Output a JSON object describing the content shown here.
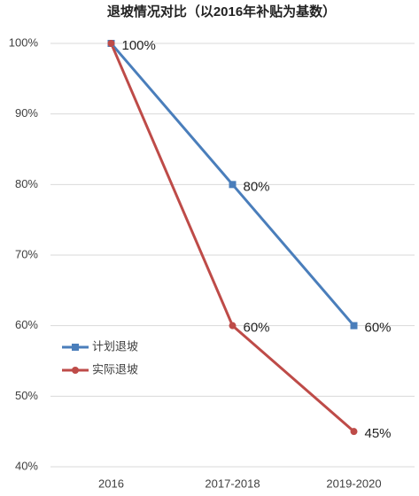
{
  "chart_data": {
    "type": "line",
    "title": "退坡情况对比（以2016年补贴为基数）",
    "categories": [
      "2016",
      "2017-2018",
      "2019-2020"
    ],
    "series": [
      {
        "name": "计划退坡",
        "color": "#4a7ebb",
        "marker": "square",
        "values": [
          100,
          80,
          60
        ],
        "value_labels": [
          "100%",
          "80%",
          "60%"
        ]
      },
      {
        "name": "实际退坡",
        "color": "#be4b48",
        "marker": "circle",
        "values": [
          100,
          60,
          45
        ],
        "value_labels": [
          null,
          "60%",
          "45%"
        ]
      }
    ],
    "ylim": [
      40,
      100
    ],
    "yticks": [
      {
        "value": 40,
        "label": "40%"
      },
      {
        "value": 50,
        "label": "50%"
      },
      {
        "value": 60,
        "label": "60%"
      },
      {
        "value": 70,
        "label": "70%"
      },
      {
        "value": 80,
        "label": "80%"
      },
      {
        "value": 90,
        "label": "90%"
      },
      {
        "value": 100,
        "label": "100%"
      }
    ],
    "grid": true
  }
}
